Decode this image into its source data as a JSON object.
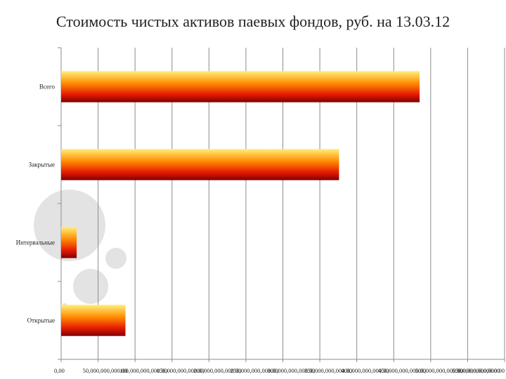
{
  "chart_data": {
    "type": "bar",
    "orientation": "horizontal",
    "title": "Стоимость чистых активов паевых фондов, руб. на 13.03.12",
    "categories": [
      "Всего",
      "Закрытые",
      "Интервальные",
      "Открытые"
    ],
    "values": [
      485000000000,
      376000000000,
      21000000000,
      87000000000
    ],
    "xlabel": "",
    "ylabel": "",
    "xlim": [
      0,
      600000000000
    ],
    "x_ticks": [
      0,
      50000000000,
      100000000000,
      150000000000,
      200000000000,
      250000000000,
      300000000000,
      350000000000,
      400000000000,
      450000000000,
      500000000000,
      550000000000,
      600000000000
    ],
    "x_tick_labels": [
      "0,00",
      "50,000,000,000.00",
      "100,000,000,000.00",
      "150,000,000,000.00",
      "200,000,000,000.00",
      "250,000,000,000.00",
      "300,000,000,000.00",
      "350,000,000,000.00",
      "400,000,000,000.00",
      "450,000,000,000.00",
      "500,000,000,000.00",
      "550,000,000,000.00",
      "600,000,000,000.00"
    ],
    "grid": "vertical",
    "legend": "none",
    "colors": {
      "bar_top": "#ffef7a",
      "bar_mid": "#ff8a00",
      "bar_low": "#e61a00",
      "bar_bottom": "#800000",
      "grid": "#8c8c8c",
      "axis": "#8c8c8c"
    }
  }
}
